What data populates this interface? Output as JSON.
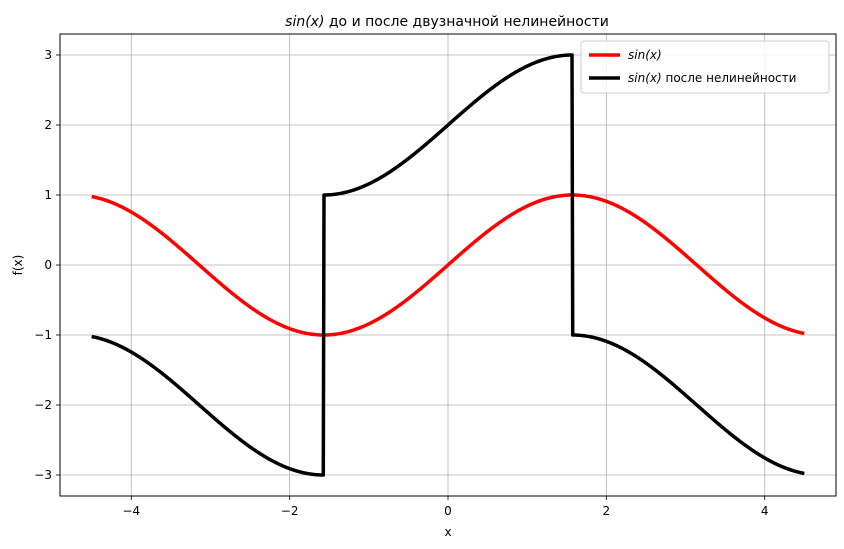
{
  "chart_data": {
    "type": "line",
    "title_math": "sin(x)",
    "title_rest": " до и после двузначной нелинейности",
    "xlabel": "x",
    "ylabel": "f(x)",
    "xlim": [
      -4.9,
      4.9
    ],
    "ylim": [
      -3.3,
      3.3
    ],
    "xticks": [
      -4,
      -2,
      0,
      2,
      4
    ],
    "xtick_labels": [
      "−4",
      "−2",
      "0",
      "2",
      "4"
    ],
    "yticks": [
      -3,
      -2,
      -1,
      0,
      1,
      2,
      3
    ],
    "ytick_labels": [
      "−3",
      "−2",
      "−1",
      "0",
      "1",
      "2",
      "3"
    ],
    "grid": true,
    "legend_position": "top-right",
    "x_range": [
      -4.5,
      4.5
    ],
    "series": [
      {
        "name_math": "sin(x)",
        "name_rest": "",
        "function": "sin(x)",
        "color": "#ff0000"
      },
      {
        "name_math": "sin(x)",
        "name_rest": " после нелинейности",
        "function": "sin(x) + 2*sign(cos(x))",
        "color": "#000000"
      }
    ]
  }
}
